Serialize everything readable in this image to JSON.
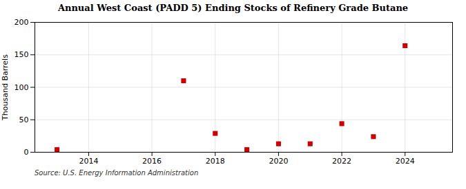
{
  "chart_data": {
    "type": "scatter",
    "title": "Annual West Coast (PADD 5) Ending Stocks of Refinery Grade Butane",
    "ylabel": "Thousand Barrels",
    "source": "Source: U.S. Energy Information Administration",
    "x": [
      2013,
      2017,
      2018,
      2019,
      2020,
      2021,
      2022,
      2023,
      2024
    ],
    "values": [
      4,
      110,
      29,
      4,
      13,
      13,
      44,
      24,
      164
    ],
    "color": "#cc0000",
    "marker": "square",
    "xlim": [
      2012.3,
      2025.5
    ],
    "ylim": [
      0,
      200
    ],
    "xticks": [
      2014,
      2016,
      2018,
      2020,
      2022,
      2024
    ],
    "yticks": [
      0,
      50,
      100,
      150,
      200
    ],
    "grid": true
  }
}
